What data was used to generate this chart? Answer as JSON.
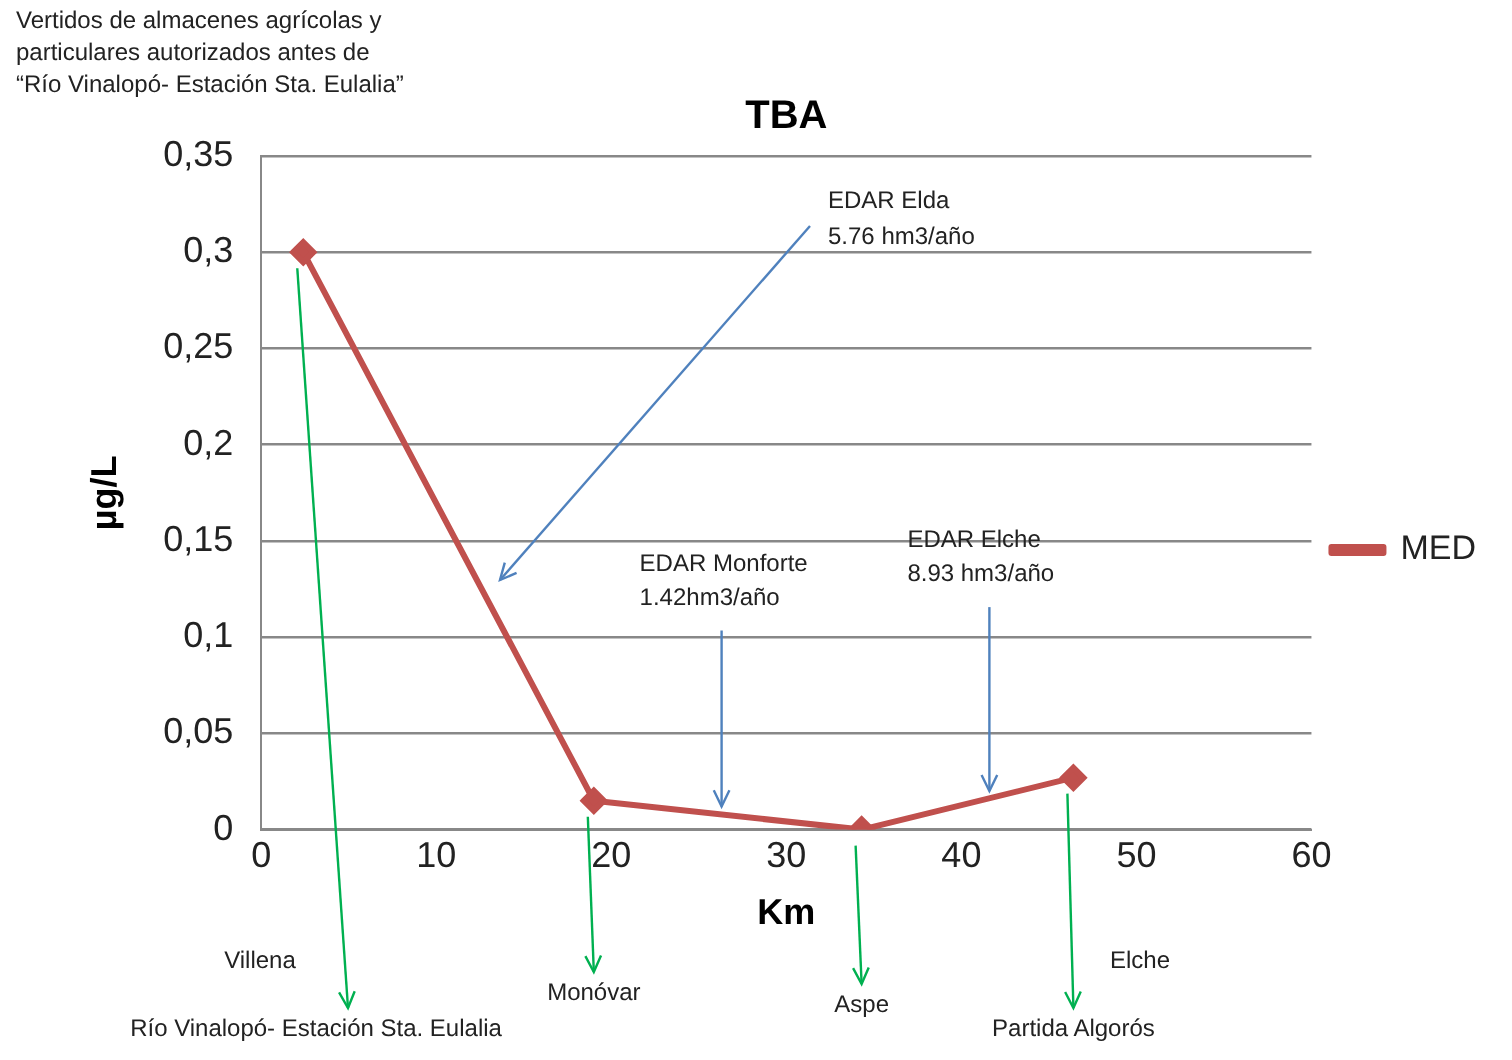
{
  "chart_data": {
    "type": "line",
    "title": "TBA",
    "xlabel": "Km",
    "ylabel": "µg/L",
    "x": [
      2.4,
      19,
      34.3,
      46.4
    ],
    "series": [
      {
        "name": "MED",
        "color": "#c0504d",
        "values": [
          0.3,
          0.015,
          0,
          0.027
        ]
      }
    ],
    "xlim": [
      0,
      60
    ],
    "xticks": [
      0,
      10,
      20,
      30,
      40,
      50,
      60
    ],
    "ylim": [
      0,
      0.35
    ],
    "yticks": [
      0,
      {
        "value": 0.05,
        "label": "0,05"
      },
      {
        "value": 0.1,
        "label": "0,1"
      },
      {
        "value": 0.15,
        "label": "0,15"
      },
      {
        "value": 0.2,
        "label": "0,2"
      },
      {
        "value": 0.25,
        "label": "0,25"
      },
      {
        "value": 0.3,
        "label": "0,3"
      },
      {
        "value": 0.35,
        "label": "0,35"
      }
    ],
    "grid": "y",
    "legend": "right",
    "marker": "diamond",
    "line_style": "solid",
    "annotations": [
      "Vertidos de almacenes agrícolas y\nparticulares autorizados antes de\n“Río Vinalopó- Estación Sta. Eulalia”",
      "EDAR Elda\n5.76 hm3/año",
      {
        "text": "EDAR Monforte\n1.42hm3/año",
        "x": 26.3,
        "y": 0.012
      },
      {
        "text": "EDAR Elche\n8.93 hm3/año",
        "x": 41.6,
        "y": 0.02
      },
      "Villena",
      {
        "text": "Río Vinalopó- Estación Sta. Eulalia",
        "x": 2.4,
        "y": 0.3
      },
      {
        "text": "Monóvar",
        "x": 19,
        "y": 0.015
      },
      {
        "text": "Aspe",
        "x": 34.3,
        "y": 0
      },
      "Elche",
      {
        "text": "Partida Algorós",
        "x": 46.4,
        "y": 0.027
      }
    ]
  }
}
